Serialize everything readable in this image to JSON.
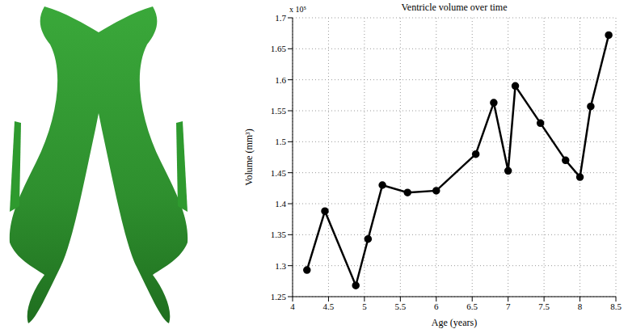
{
  "chart_data": {
    "type": "line",
    "title": "Ventricle volume over time",
    "x_label": "Age (years)",
    "y_label": "Volume (mm³)",
    "annotations": [
      "x 10⁵"
    ],
    "x": [
      4.2,
      4.45,
      4.88,
      5.05,
      5.25,
      5.6,
      6.0,
      6.55,
      6.8,
      7.0,
      7.1,
      7.45,
      7.8,
      8.0,
      8.15,
      8.4
    ],
    "values": [
      1.293,
      1.388,
      1.268,
      1.343,
      1.43,
      1.418,
      1.421,
      1.48,
      1.563,
      1.453,
      1.59,
      1.53,
      1.47,
      1.443,
      1.557,
      1.672
    ],
    "color": "#000000",
    "marker": "circle",
    "line_style": "solid",
    "xlim": [
      4,
      8.5
    ],
    "xticks": [
      4,
      4.5,
      5,
      5.5,
      6,
      6.5,
      7,
      7.5,
      8,
      8.5
    ],
    "ylim": [
      1.25,
      1.7
    ],
    "yticks": [
      1.25,
      1.3,
      1.35,
      1.4,
      1.45,
      1.5,
      1.55,
      1.6,
      1.65,
      1.7
    ],
    "grid": true
  }
}
